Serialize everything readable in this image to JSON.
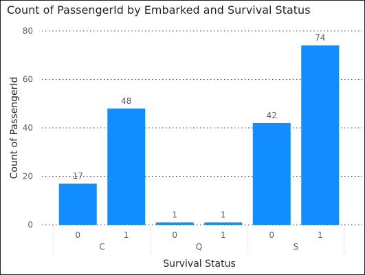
{
  "chart_data": {
    "type": "bar",
    "title": "Count of PassengerId by Embarked and Survival Status",
    "xlabel": "Survival Status",
    "ylabel": "Count of PassengerId",
    "ylim": [
      0,
      80
    ],
    "yticks": [
      0,
      20,
      40,
      60,
      80
    ],
    "grid": true,
    "color": "#118DFF",
    "groups": [
      {
        "label": "C",
        "categories": [
          "0",
          "1"
        ],
        "values": [
          17,
          48
        ]
      },
      {
        "label": "Q",
        "categories": [
          "0",
          "1"
        ],
        "values": [
          1,
          1
        ]
      },
      {
        "label": "S",
        "categories": [
          "0",
          "1"
        ],
        "values": [
          42,
          74
        ]
      }
    ]
  }
}
